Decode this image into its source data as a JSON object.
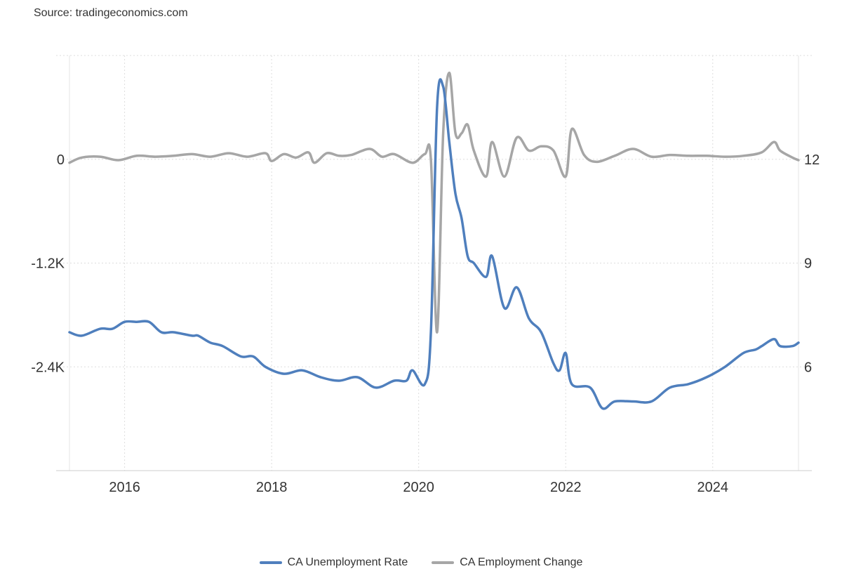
{
  "source_label": "Source: tradingeconomics.com",
  "chart_data": {
    "type": "line",
    "x_ticks": [
      "2016",
      "2018",
      "2020",
      "2022",
      "2024"
    ],
    "y_left": {
      "ticks": [
        "0",
        "-1.2K",
        "-2.4K"
      ],
      "tick_values": [
        0,
        -1200,
        -2400
      ],
      "range": [
        -3600,
        1200
      ]
    },
    "y_right": {
      "ticks": [
        "12",
        "9",
        "6"
      ],
      "tick_values": [
        12,
        9,
        6
      ],
      "range": [
        3,
        15
      ]
    },
    "x_range": [
      "2015-04",
      "2025-03"
    ],
    "grid": true,
    "legend_position": "bottom",
    "series": [
      {
        "name": "CA Unemployment Rate",
        "axis": "right",
        "color": "#4f7fbd",
        "points": [
          [
            "2015-04",
            7.0
          ],
          [
            "2015-06",
            6.9
          ],
          [
            "2015-09",
            7.1
          ],
          [
            "2015-11",
            7.1
          ],
          [
            "2016-01",
            7.3
          ],
          [
            "2016-03",
            7.3
          ],
          [
            "2016-05",
            7.3
          ],
          [
            "2016-07",
            7.0
          ],
          [
            "2016-09",
            7.0
          ],
          [
            "2016-12",
            6.9
          ],
          [
            "2017-01",
            6.9
          ],
          [
            "2017-03",
            6.7
          ],
          [
            "2017-05",
            6.6
          ],
          [
            "2017-08",
            6.3
          ],
          [
            "2017-10",
            6.3
          ],
          [
            "2017-12",
            6.0
          ],
          [
            "2018-03",
            5.8
          ],
          [
            "2018-06",
            5.9
          ],
          [
            "2018-09",
            5.7
          ],
          [
            "2018-12",
            5.6
          ],
          [
            "2019-03",
            5.7
          ],
          [
            "2019-06",
            5.4
          ],
          [
            "2019-09",
            5.6
          ],
          [
            "2019-11",
            5.6
          ],
          [
            "2019-12",
            5.9
          ],
          [
            "2020-02",
            5.5
          ],
          [
            "2020-03",
            7.0
          ],
          [
            "2020-04",
            13.5
          ],
          [
            "2020-05",
            14.1
          ],
          [
            "2020-06",
            12.5
          ],
          [
            "2020-07",
            11.0
          ],
          [
            "2020-08",
            10.3
          ],
          [
            "2020-09",
            9.2
          ],
          [
            "2020-10",
            9.0
          ],
          [
            "2020-12",
            8.6
          ],
          [
            "2021-01",
            9.2
          ],
          [
            "2021-03",
            7.7
          ],
          [
            "2021-05",
            8.3
          ],
          [
            "2021-07",
            7.4
          ],
          [
            "2021-09",
            7.0
          ],
          [
            "2021-11",
            6.1
          ],
          [
            "2021-12",
            5.9
          ],
          [
            "2022-01",
            6.4
          ],
          [
            "2022-02",
            5.5
          ],
          [
            "2022-05",
            5.4
          ],
          [
            "2022-07",
            4.8
          ],
          [
            "2022-09",
            5.0
          ],
          [
            "2022-12",
            5.0
          ],
          [
            "2023-03",
            5.0
          ],
          [
            "2023-06",
            5.4
          ],
          [
            "2023-09",
            5.5
          ],
          [
            "2023-12",
            5.7
          ],
          [
            "2024-03",
            6.0
          ],
          [
            "2024-06",
            6.4
          ],
          [
            "2024-08",
            6.5
          ],
          [
            "2024-09",
            6.6
          ],
          [
            "2024-11",
            6.8
          ],
          [
            "2024-12",
            6.6
          ],
          [
            "2025-02",
            6.6
          ],
          [
            "2025-03",
            6.7
          ]
        ]
      },
      {
        "name": "CA Employment Change",
        "axis": "left",
        "color": "#a6a6a6",
        "points": [
          [
            "2015-04",
            -40
          ],
          [
            "2015-06",
            20
          ],
          [
            "2015-09",
            30
          ],
          [
            "2015-12",
            -10
          ],
          [
            "2016-03",
            40
          ],
          [
            "2016-06",
            30
          ],
          [
            "2016-09",
            40
          ],
          [
            "2016-12",
            60
          ],
          [
            "2017-03",
            30
          ],
          [
            "2017-06",
            70
          ],
          [
            "2017-09",
            30
          ],
          [
            "2017-12",
            70
          ],
          [
            "2018-01",
            -20
          ],
          [
            "2018-03",
            60
          ],
          [
            "2018-05",
            20
          ],
          [
            "2018-07",
            80
          ],
          [
            "2018-08",
            -40
          ],
          [
            "2018-10",
            70
          ],
          [
            "2018-12",
            40
          ],
          [
            "2019-02",
            50
          ],
          [
            "2019-05",
            120
          ],
          [
            "2019-07",
            30
          ],
          [
            "2019-09",
            60
          ],
          [
            "2019-12",
            -40
          ],
          [
            "2020-02",
            60
          ],
          [
            "2020-03",
            0
          ],
          [
            "2020-04",
            -2000
          ],
          [
            "2020-05",
            300
          ],
          [
            "2020-06",
            1000
          ],
          [
            "2020-07",
            300
          ],
          [
            "2020-08",
            300
          ],
          [
            "2020-09",
            400
          ],
          [
            "2020-10",
            100
          ],
          [
            "2020-12",
            -200
          ],
          [
            "2021-01",
            200
          ],
          [
            "2021-03",
            -200
          ],
          [
            "2021-05",
            250
          ],
          [
            "2021-07",
            100
          ],
          [
            "2021-09",
            150
          ],
          [
            "2021-11",
            100
          ],
          [
            "2022-01",
            -200
          ],
          [
            "2022-02",
            350
          ],
          [
            "2022-04",
            50
          ],
          [
            "2022-06",
            -30
          ],
          [
            "2022-09",
            40
          ],
          [
            "2022-12",
            120
          ],
          [
            "2023-03",
            30
          ],
          [
            "2023-06",
            50
          ],
          [
            "2023-09",
            40
          ],
          [
            "2023-12",
            40
          ],
          [
            "2024-03",
            30
          ],
          [
            "2024-06",
            40
          ],
          [
            "2024-09",
            80
          ],
          [
            "2024-11",
            200
          ],
          [
            "2024-12",
            100
          ],
          [
            "2025-02",
            20
          ],
          [
            "2025-03",
            -10
          ]
        ]
      }
    ]
  }
}
